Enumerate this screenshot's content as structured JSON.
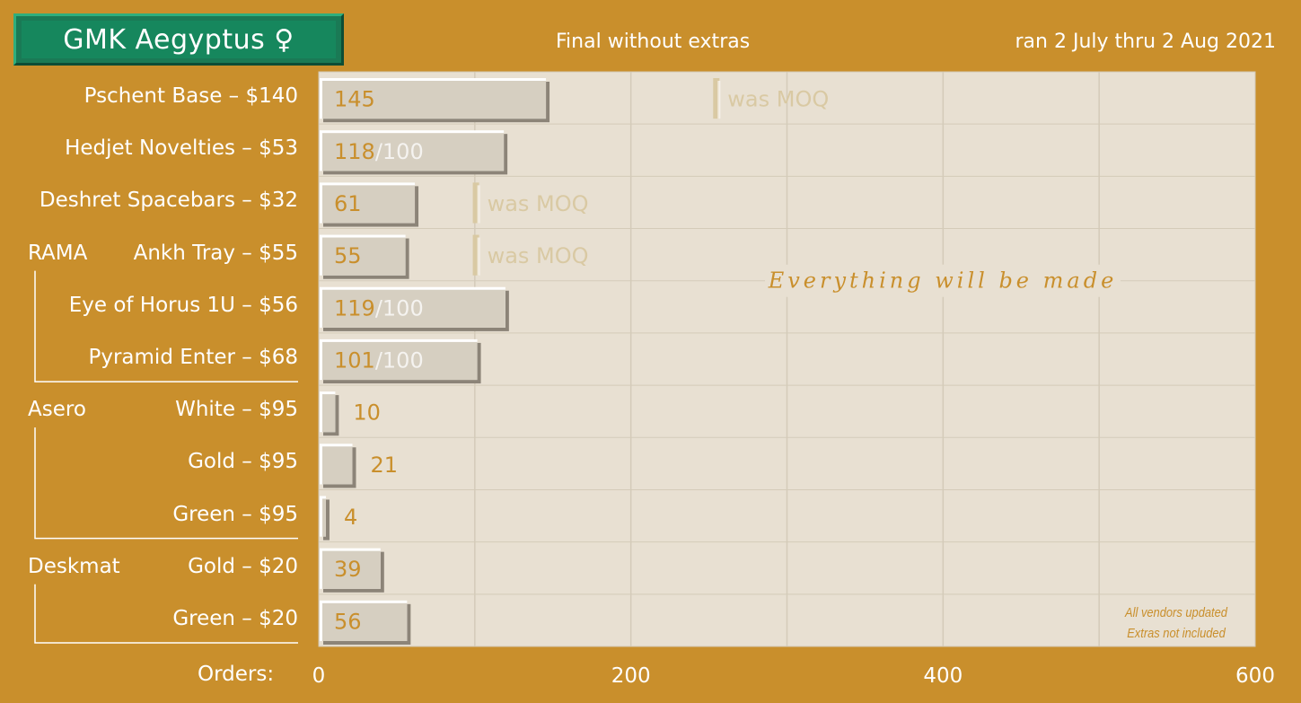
{
  "header": {
    "title": "GMK Aegyptus ♀",
    "subtitle": "Final without extras",
    "date_range": "ran 2 July thru 2 Aug 2021"
  },
  "axis": {
    "prefix": "Orders:"
  },
  "chart_data": {
    "type": "bar",
    "orientation": "horizontal",
    "title": "GMK Aegyptus ♀",
    "subtitle": "Final without extras",
    "xlabel": "Orders:",
    "xlim": [
      0,
      600
    ],
    "xticks": [
      0,
      200,
      400,
      600
    ],
    "grid": true,
    "categories": [
      "Pschent Base – $140",
      "Hedjet Novelties – $53",
      "Deshret Spacebars – $32",
      "Ankh Tray – $55",
      "Eye of Horus 1U – $56",
      "Pyramid Enter – $68",
      "White – $95",
      "Gold – $95",
      "Green – $95",
      "Gold – $20",
      "Green – $20"
    ],
    "values": [
      145,
      118,
      61,
      55,
      119,
      101,
      10,
      21,
      4,
      39,
      56
    ],
    "targets": [
      null,
      "/100",
      null,
      null,
      "/100",
      "/100",
      null,
      null,
      null,
      null,
      null
    ],
    "groups": [
      {
        "name": "RAMA",
        "start": 3,
        "end": 5
      },
      {
        "name": "Asero",
        "start": 6,
        "end": 8
      },
      {
        "name": "Deskmat",
        "start": 9,
        "end": 10
      }
    ],
    "markers": [
      {
        "row": 0,
        "x": 255,
        "label": "was MOQ"
      },
      {
        "row": 2,
        "x": 101,
        "label": "was MOQ"
      },
      {
        "row": 3,
        "x": 101,
        "label": "was MOQ"
      }
    ],
    "annotations": {
      "center": "Everything will be made",
      "note_line1": "All vendors updated",
      "note_line2": "Extras not included"
    },
    "colors": {
      "background": "#c98f2c",
      "plot": "#e8e0d2",
      "bar": "#d6cfc1",
      "bar_shadow": "#8c8478",
      "bar_highlight": "#ffffff",
      "value_text": "#c98f2c",
      "muted_text": "#d9c9a3",
      "title_box": "#16875d"
    }
  }
}
